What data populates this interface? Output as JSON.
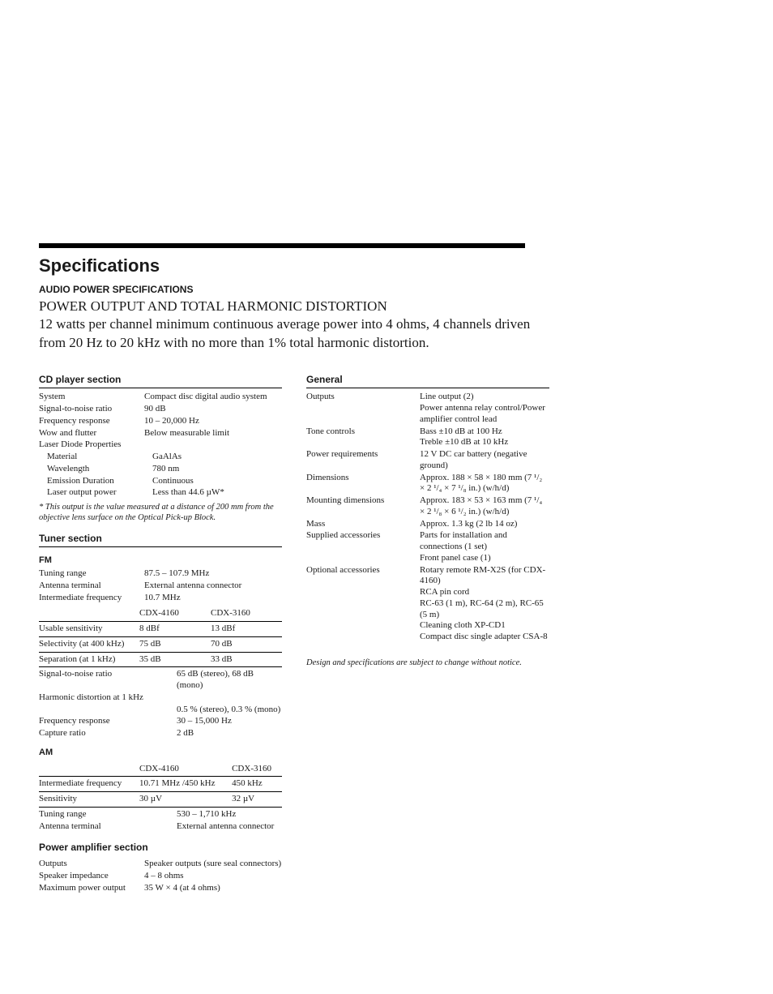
{
  "page_title": "Specifications",
  "audio_power_label": "AUDIO POWER SPECIFICATIONS",
  "lead_line1": "POWER OUTPUT AND TOTAL HARMONIC DISTORTION",
  "lead_line2": "12 watts per channel minimum continuous average power into 4 ohms, 4 channels driven from 20 Hz to 20 kHz with no more than 1% total harmonic distortion.",
  "cd": {
    "heading": "CD player section",
    "rows": [
      {
        "k": "System",
        "v": "Compact disc digital audio system"
      },
      {
        "k": "Signal-to-noise ratio",
        "v": "90 dB"
      },
      {
        "k": "Frequency response",
        "v": "10 – 20,000 Hz"
      },
      {
        "k": "Wow and flutter",
        "v": "Below measurable limit"
      },
      {
        "k": "Laser Diode Properties",
        "v": ""
      },
      {
        "k": "Material",
        "v": "GaAlAs",
        "indent": true
      },
      {
        "k": "Wavelength",
        "v": "780 nm",
        "indent": true
      },
      {
        "k": "Emission Duration",
        "v": "Continuous",
        "indent": true
      },
      {
        "k": "Laser output power",
        "v": "Less than 44.6 µW*",
        "indent": true
      }
    ],
    "footnote": "* This output is the value measured at a distance of 200 mm from the objective lens surface on the Optical Pick-up Block."
  },
  "tuner": {
    "heading": "Tuner section",
    "fm_label": "FM",
    "fm_rows": [
      {
        "k": "Tuning range",
        "v": "87.5 – 107.9 MHz"
      },
      {
        "k": "Antenna terminal",
        "v": "External antenna connector"
      },
      {
        "k": "Intermediate frequency",
        "v": "10.7 MHz"
      }
    ],
    "fm_table": {
      "cols": [
        "",
        "CDX-4160",
        "CDX-3160"
      ],
      "rows": [
        [
          "Usable sensitivity",
          "8 dBf",
          "13 dBf"
        ],
        [
          "Selectivity (at 400 kHz)",
          "75 dB",
          "70 dB"
        ],
        [
          "Separation (at 1 kHz)",
          "35 dB",
          "33 dB"
        ]
      ]
    },
    "fm_after": [
      {
        "k": "Signal-to-noise ratio",
        "v": "65 dB (stereo), 68 dB (mono)"
      },
      {
        "k": "Harmonic distortion at 1 kHz",
        "v": ""
      },
      {
        "k": "",
        "v": "0.5 % (stereo), 0.3 % (mono)"
      },
      {
        "k": "Frequency response",
        "v": "30 – 15,000 Hz"
      },
      {
        "k": "Capture ratio",
        "v": "2 dB"
      }
    ],
    "am_label": "AM",
    "am_table": {
      "cols": [
        "",
        "CDX-4160",
        "CDX-3160"
      ],
      "rows": [
        [
          "Intermediate frequency",
          "10.71 MHz /450 kHz",
          "450 kHz"
        ],
        [
          "Sensitivity",
          "30 µV",
          "32 µV"
        ]
      ]
    },
    "am_after": [
      {
        "k": "Tuning range",
        "v": "530 – 1,710 kHz"
      },
      {
        "k": "Antenna terminal",
        "v": "External antenna connector"
      }
    ]
  },
  "power_amp": {
    "heading": "Power amplifier section",
    "rows": [
      {
        "k": "Outputs",
        "v": "Speaker outputs (sure seal connectors)"
      },
      {
        "k": "Speaker impedance",
        "v": "4 – 8 ohms"
      },
      {
        "k": "Maximum power output",
        "v": "35 W × 4 (at 4 ohms)"
      }
    ]
  },
  "general": {
    "heading": "General",
    "rows": [
      {
        "k": "Outputs",
        "v": "Line output (2)\nPower antenna relay control/Power amplifier control lead"
      },
      {
        "k": "Tone controls",
        "v": "Bass ±10 dB at 100 Hz\nTreble ±10 dB at 10 kHz"
      },
      {
        "k": "Power requirements",
        "v": "12 V DC car battery (negative ground)"
      },
      {
        "k": "Dimensions",
        "v": "Approx. 188 × 58 × 180 mm (7 ¹/₂ × 2 ¹/₄ × 7 ¹/₈ in.) (w/h/d)"
      },
      {
        "k": "Mounting dimensions",
        "v": "Approx. 183 × 53 × 163 mm (7 ¹/₄ × 2 ¹/₈ × 6 ¹/₂ in.) (w/h/d)"
      },
      {
        "k": "Mass",
        "v": "Approx. 1.3 kg (2 lb 14 oz)"
      },
      {
        "k": "Supplied accessories",
        "v": "Parts for installation and connections (1 set)\nFront panel case (1)"
      },
      {
        "k": "Optional accessories",
        "v": "Rotary remote RM-X2S (for CDX-4160)\nRCA pin cord\nRC-63 (1 m), RC-64 (2 m), RC-65 (5 m)\nCleaning cloth XP-CD1\nCompact disc single adapter CSA-8"
      }
    ],
    "design_note": "Design and specifications are subject to change without notice."
  }
}
